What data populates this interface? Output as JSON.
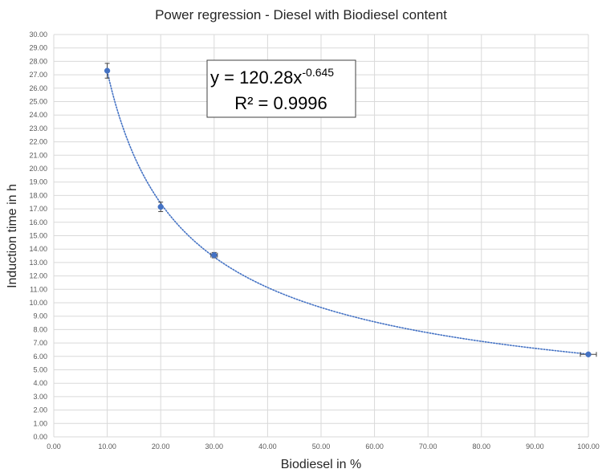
{
  "chart_data": {
    "type": "scatter",
    "title": "Power regression - Diesel with Biodiesel content",
    "xlabel": "Biodiesel in %",
    "ylabel": "Induction time in h",
    "xlim": [
      0,
      100
    ],
    "ylim": [
      0,
      30
    ],
    "x_ticks": [
      "0.00",
      "10.00",
      "20.00",
      "30.00",
      "40.00",
      "50.00",
      "60.00",
      "70.00",
      "80.00",
      "90.00",
      "100.00"
    ],
    "y_ticks": [
      "0.00",
      "1.00",
      "2.00",
      "3.00",
      "4.00",
      "5.00",
      "6.00",
      "7.00",
      "8.00",
      "9.00",
      "10.00",
      "11.00",
      "12.00",
      "13.00",
      "14.00",
      "15.00",
      "16.00",
      "17.00",
      "18.00",
      "19.00",
      "20.00",
      "21.00",
      "22.00",
      "23.00",
      "24.00",
      "25.00",
      "26.00",
      "27.00",
      "28.00",
      "29.00",
      "30.00"
    ],
    "grid": true,
    "series": [
      {
        "x": [
          10,
          20,
          30,
          100
        ],
        "y": [
          27.3,
          17.15,
          13.55,
          6.15
        ],
        "y_error": [
          0.55,
          0.35,
          0.2,
          0.05
        ],
        "x_error": [
          0,
          0,
          0.6,
          1.5
        ],
        "color": "#4472C4"
      }
    ],
    "trendline": {
      "type": "power",
      "coefficient": 120.28,
      "exponent": -0.645,
      "color": "#4472C4",
      "style": "dotted",
      "equation_text": "y = 120.28x",
      "equation_exponent": "-0.645",
      "r_squared_text": "R² = 0.9996"
    }
  }
}
